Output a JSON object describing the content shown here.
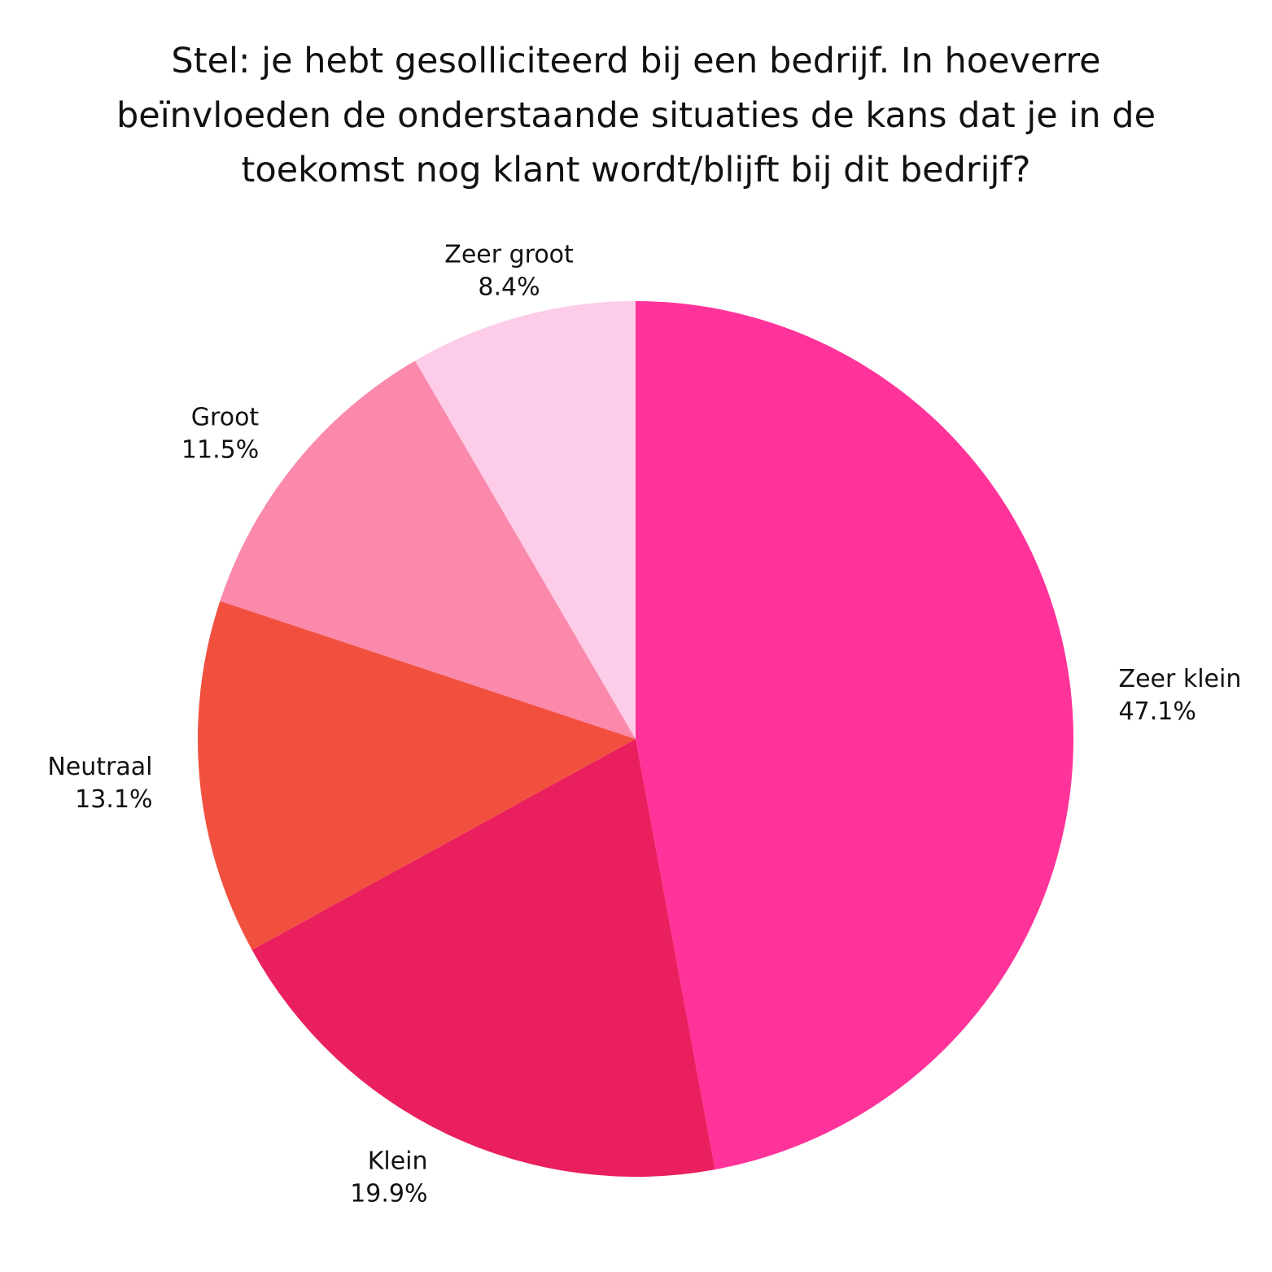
{
  "chart_data": {
    "type": "pie",
    "title_lines": [
      "Stel: je hebt gesolliciteerd bij een bedrijf. In hoeverre",
      "beïnvloeden de onderstaande situaties de kans dat je in de",
      "toekomst nog klant wordt/blijft bij dit bedrijf?"
    ],
    "start_angle": "12 o'clock",
    "direction": "clockwise",
    "slices": [
      {
        "label": "Zeer klein",
        "value": 47.1,
        "value_label": "47.1%",
        "color": "#ff3399"
      },
      {
        "label": "Klein",
        "value": 19.9,
        "value_label": "19.9%",
        "color": "#ea1f5d"
      },
      {
        "label": "Neutraal",
        "value": 13.1,
        "value_label": "13.1%",
        "color": "#f2503f"
      },
      {
        "label": "Groot",
        "value": 11.5,
        "value_label": "11.5%",
        "color": "#fa89ab"
      },
      {
        "label": "Zeer groot",
        "value": 8.4,
        "value_label": "8.4%",
        "color": "#fdcce8"
      }
    ]
  }
}
